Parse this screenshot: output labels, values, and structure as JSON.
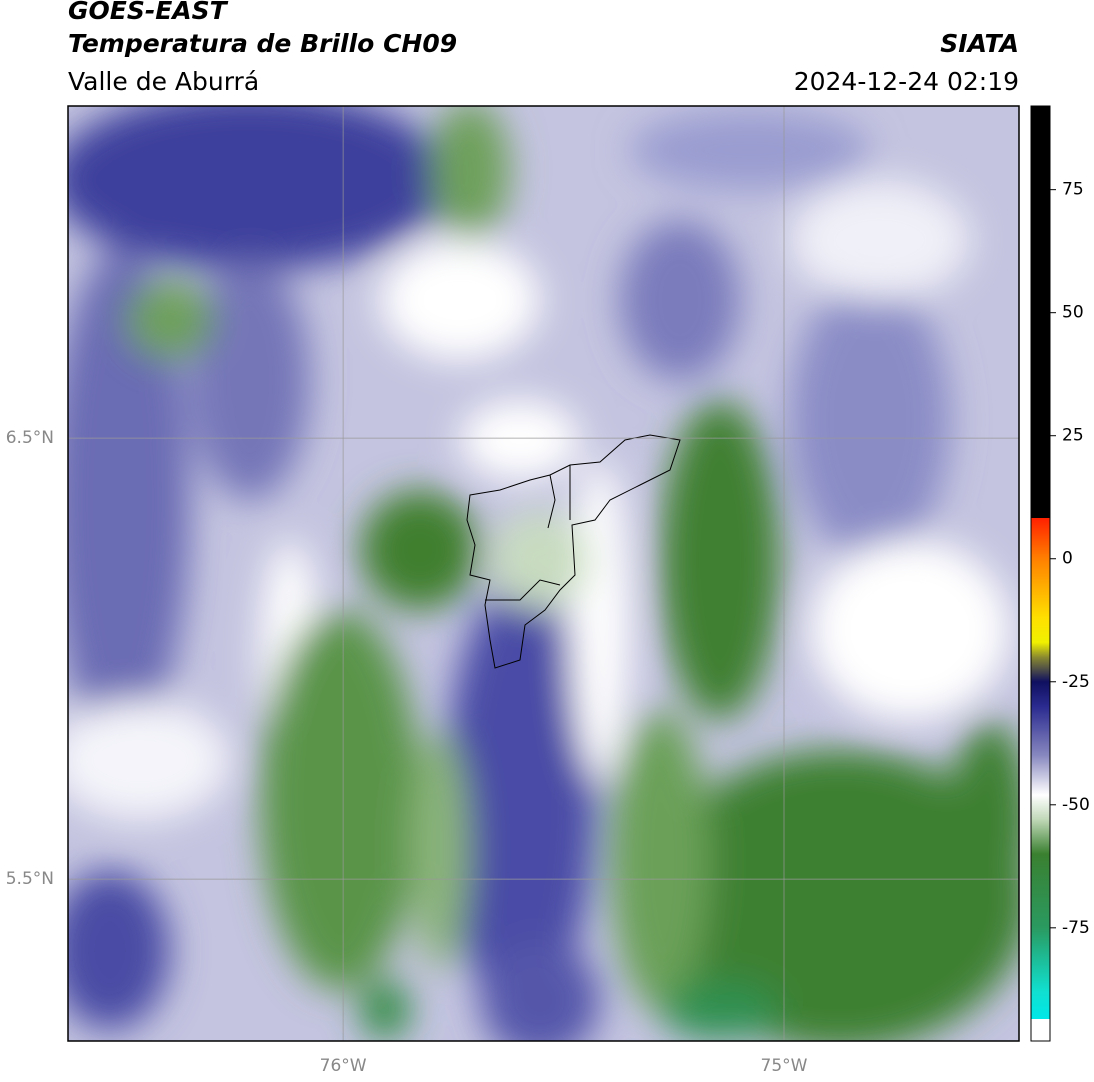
{
  "header": {
    "title": "GOES-EAST",
    "subtitle": "Temperatura de Brillo CH09",
    "region": "Valle de Aburrá",
    "source": "SIATA",
    "datetime": "2024-12-24 02:19"
  },
  "map": {
    "xlim": [
      -76.624,
      -74.467
    ],
    "ylim": [
      5.133,
      7.253
    ],
    "xticks": [
      {
        "value": -76,
        "label": "76°W"
      },
      {
        "value": -75,
        "label": "75°W"
      }
    ],
    "yticks": [
      {
        "value": 6.5,
        "label": "6.5°N"
      },
      {
        "value": 5.5,
        "label": "5.5°N"
      }
    ],
    "grid": true
  },
  "colorbar": {
    "lim": [
      -98,
      92
    ],
    "ticks": [
      75,
      50,
      25,
      0,
      -25,
      -50,
      -75
    ],
    "stops": [
      [
        92,
        "#000000"
      ],
      [
        8.3,
        "#000000"
      ],
      [
        8.3,
        "#ff2000"
      ],
      [
        0,
        "#ff8000"
      ],
      [
        -12,
        "#ffe000"
      ],
      [
        -17,
        "#f0f000"
      ],
      [
        -20,
        "#8a8a30"
      ],
      [
        -25,
        "#101060"
      ],
      [
        -30,
        "#2a2a90"
      ],
      [
        -40,
        "#8888c0"
      ],
      [
        -48,
        "#ffffff"
      ],
      [
        -53,
        "#c0d8b8"
      ],
      [
        -60,
        "#3a8030"
      ],
      [
        -75,
        "#2a9a60"
      ],
      [
        -88,
        "#10e0d0"
      ],
      [
        -93.5,
        "#00e8e8"
      ],
      [
        -93.5,
        "#ffffff"
      ],
      [
        -98,
        "#ffffff"
      ]
    ]
  }
}
